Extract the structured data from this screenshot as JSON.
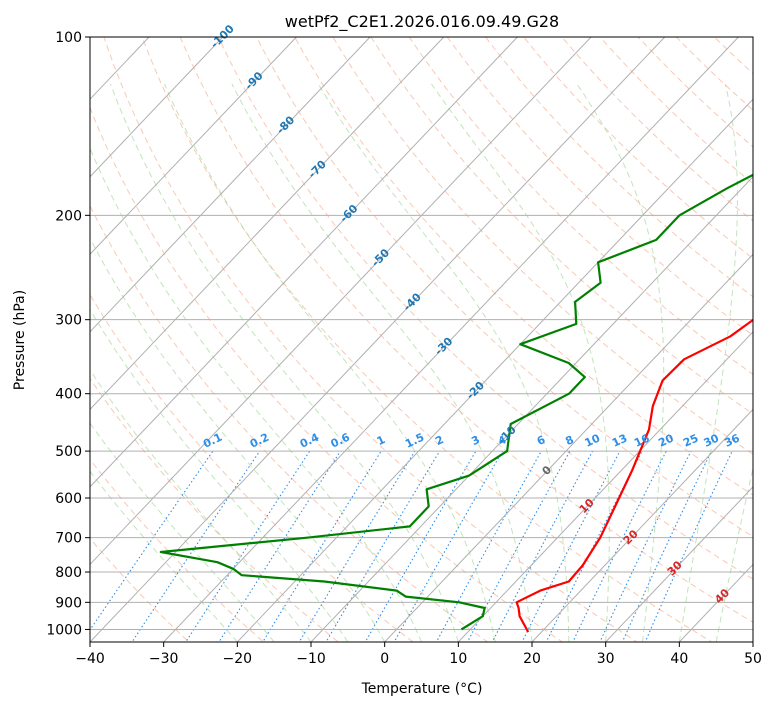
{
  "chart_data": {
    "type": "line",
    "title": "wetPf2_C2E1.2026.016.09.49.G28",
    "xlabel": "Temperature (°C)",
    "ylabel": "Pressure (hPa)",
    "xlim": [
      -40,
      50
    ],
    "ylim": [
      1050,
      100
    ],
    "y_scale": "log",
    "grid": true,
    "x_ticks": [
      -40,
      -30,
      -20,
      -10,
      0,
      10,
      20,
      30,
      40,
      50
    ],
    "y_ticks": [
      1000,
      900,
      800,
      700,
      600,
      500,
      400,
      300,
      200,
      100
    ],
    "x_tick_labels": [
      "−40",
      "−30",
      "−20",
      "−10",
      "0",
      "10",
      "20",
      "30",
      "40",
      "50"
    ],
    "y_tick_labels": [
      "1000",
      "900",
      "800",
      "700",
      "600",
      "500",
      "400",
      "300",
      "200",
      "100"
    ],
    "colors": {
      "temperature": "#ff0000",
      "dewpoint": "#008000",
      "isotherm": "#b0b0b0",
      "dry_adiabat": "#f4a582",
      "moist_adiabat": "#a8d8a0",
      "mixing_ratio": "#2f8fe8",
      "isentrope_label": "#1f77b4",
      "thetae_label": "#d62728",
      "grey_label": "#666666"
    },
    "series": [
      {
        "key": "temperature",
        "points": [
          [
            18.2,
            1010
          ],
          [
            15.0,
            950
          ],
          [
            13.8,
            920
          ],
          [
            12.8,
            900
          ],
          [
            14.5,
            860
          ],
          [
            17.2,
            830
          ],
          [
            17.0,
            780
          ],
          [
            15.8,
            700
          ],
          [
            13.8,
            620
          ],
          [
            11.5,
            540
          ],
          [
            8.5,
            460
          ],
          [
            6.0,
            420
          ],
          [
            4.0,
            380
          ],
          [
            4.2,
            350
          ],
          [
            7.5,
            320
          ],
          [
            9.0,
            290
          ],
          [
            9.3,
            260
          ],
          [
            9.5,
            230
          ],
          [
            9.3,
            200
          ],
          [
            7.0,
            170
          ],
          [
            7.0,
            140
          ],
          [
            10.0,
            120
          ],
          [
            11.5,
            108
          ],
          [
            11.5,
            100
          ]
        ]
      },
      {
        "key": "dewpoint",
        "points": [
          [
            8.8,
            1000
          ],
          [
            10.0,
            950
          ],
          [
            9.2,
            920
          ],
          [
            5.0,
            900
          ],
          [
            -3.0,
            880
          ],
          [
            -5.0,
            860
          ],
          [
            -16.0,
            830
          ],
          [
            -28.0,
            810
          ],
          [
            -30.0,
            790
          ],
          [
            -33.0,
            770
          ],
          [
            -42.0,
            740
          ],
          [
            -24.0,
            700
          ],
          [
            -11.5,
            670
          ],
          [
            -11.5,
            620
          ],
          [
            -14.0,
            580
          ],
          [
            -10.0,
            550
          ],
          [
            -8.0,
            500
          ],
          [
            -11.0,
            450
          ],
          [
            -7.0,
            400
          ],
          [
            -7.0,
            375
          ],
          [
            -11.0,
            355
          ],
          [
            -20.0,
            330
          ],
          [
            -15.0,
            305
          ],
          [
            -18.0,
            280
          ],
          [
            -17.0,
            260
          ],
          [
            -20.0,
            240
          ],
          [
            -15.0,
            220
          ],
          [
            -15.0,
            200
          ],
          [
            -12.0,
            180
          ],
          [
            -8.0,
            160
          ],
          [
            -14.0,
            140
          ],
          [
            -19.0,
            130
          ],
          [
            -18.0,
            125
          ],
          [
            -8.0,
            120
          ],
          [
            2.0,
            110
          ],
          [
            2.0,
            100
          ]
        ]
      }
    ],
    "isentrope_labels": [
      "-100",
      "-90",
      "-80",
      "-70",
      "-60",
      "-50",
      "-40",
      "-30",
      "-20",
      "-10"
    ],
    "isentrope_label_temps": [
      -100,
      -90,
      -80,
      -70,
      -60,
      -50,
      -40,
      -30,
      -20,
      -10
    ],
    "isentrope_zero_label": "0",
    "isentrope_zero_temp": 0,
    "thetae_labels": [
      "10",
      "20",
      "30",
      "40"
    ],
    "thetae_label_temps": [
      10,
      20,
      30,
      40
    ],
    "mixing_ratio_labels": [
      "0.1",
      "0.2",
      "0.4",
      "0.6",
      "1",
      "1.5",
      "2",
      "3",
      "4",
      "6",
      "8",
      "10",
      "13",
      "16",
      "20",
      "25",
      "30",
      "36"
    ],
    "mixing_ratio_values": [
      0.1,
      0.2,
      0.4,
      0.6,
      1,
      1.5,
      2,
      3,
      4,
      6,
      8,
      10,
      13,
      16,
      20,
      25,
      30,
      36
    ]
  }
}
